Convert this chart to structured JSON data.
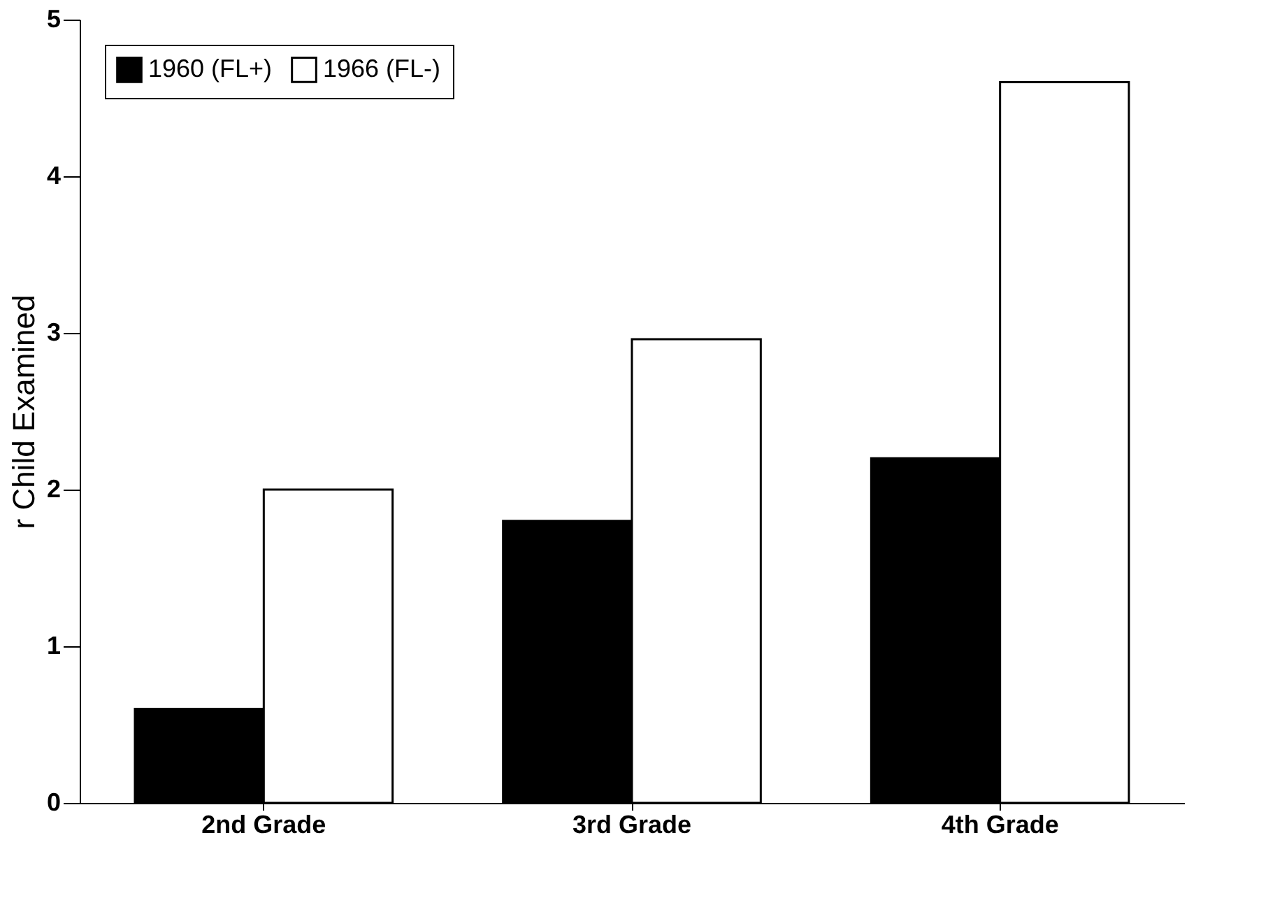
{
  "chart_data": {
    "type": "bar",
    "ylabel": "r Child Examined",
    "categories": [
      "2nd Grade",
      "3rd Grade",
      "4th Grade"
    ],
    "series": [
      {
        "name": "1960 (FL+)",
        "color": "#000000",
        "values": [
          0.6,
          1.8,
          2.2
        ]
      },
      {
        "name": "1966 (FL-)",
        "color": "#ffffff",
        "values": [
          2.0,
          2.96,
          4.6
        ]
      }
    ],
    "ylim": [
      0,
      5
    ],
    "yticks": [
      0,
      1,
      2,
      3,
      4,
      5
    ],
    "grid": false,
    "legend": "top left"
  }
}
